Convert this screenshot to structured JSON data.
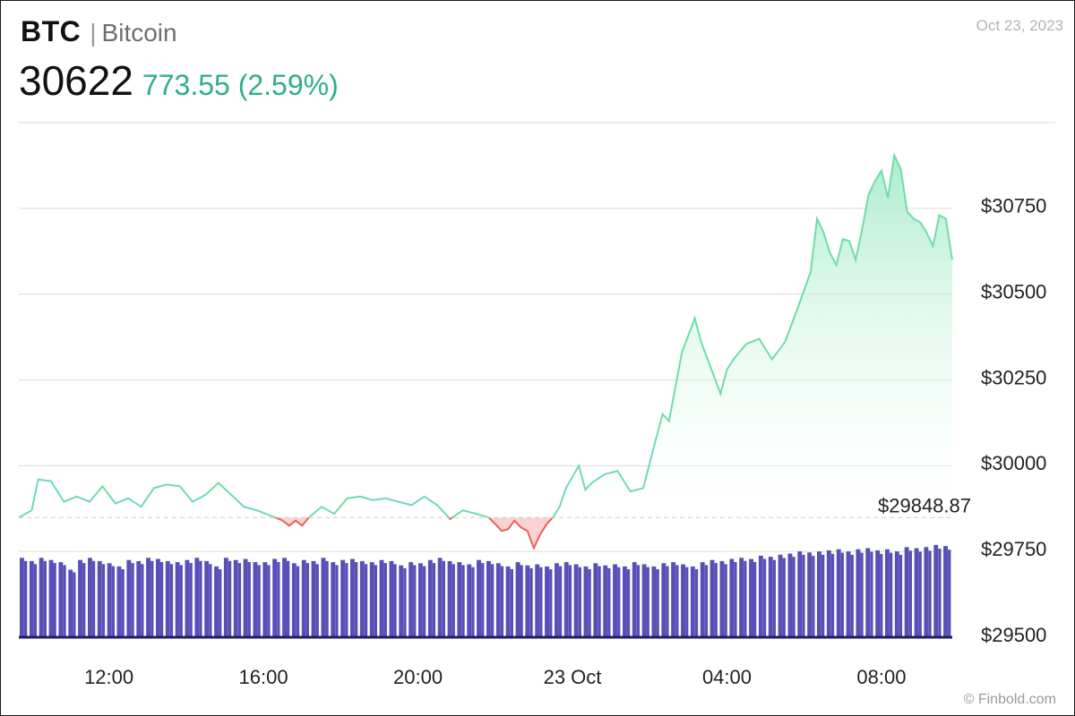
{
  "header": {
    "symbol": "BTC",
    "separator": "|",
    "name": "Bitcoin",
    "price": "30622",
    "change": "773.55 (2.59%)",
    "date": "Oct 23, 2023"
  },
  "footer": {
    "credit": "© Finbold.com"
  },
  "colors": {
    "up_line": "#6fdcab",
    "up_fill_top": "#b8f0d6",
    "down_line": "#e8605c",
    "down_fill": "#f9d3d1",
    "volume": "#5a4fb6",
    "grid": "#dcdcdc",
    "baseline": "#cfcfcf",
    "change_text": "#2eaf86"
  },
  "chart_data": {
    "type": "area",
    "title": "",
    "xlabel": "",
    "ylabel": "",
    "ylim": [
      29500,
      31000
    ],
    "yticks": [
      "$29500",
      "$29750",
      "$30000",
      "$30250",
      "$30500",
      "$30750"
    ],
    "ytick_values": [
      29500,
      29750,
      30000,
      30250,
      30500,
      30750
    ],
    "xticks": [
      {
        "label": "12:00",
        "t": "2023-10-22T12:00"
      },
      {
        "label": "16:00",
        "t": "2023-10-22T16:00"
      },
      {
        "label": "20:00",
        "t": "2023-10-22T20:00"
      },
      {
        "label": "23 Oct",
        "t": "2023-10-23T00:00"
      },
      {
        "label": "04:00",
        "t": "2023-10-23T04:00"
      },
      {
        "label": "08:00",
        "t": "2023-10-23T08:00"
      }
    ],
    "x_range": [
      "2023-10-22T09:40",
      "2023-10-23T09:50"
    ],
    "reference_value": 29848.87,
    "reference_label": "$29848.87",
    "grid": true,
    "series": [
      {
        "values": [
          [
            "2023-10-22T09:40",
            29849
          ],
          [
            "2023-10-22T10:00",
            29870
          ],
          [
            "2023-10-22T10:10",
            29960
          ],
          [
            "2023-10-22T10:30",
            29955
          ],
          [
            "2023-10-22T10:50",
            29895
          ],
          [
            "2023-10-22T11:10",
            29910
          ],
          [
            "2023-10-22T11:30",
            29895
          ],
          [
            "2023-10-22T11:50",
            29940
          ],
          [
            "2023-10-22T12:10",
            29890
          ],
          [
            "2023-10-22T12:30",
            29905
          ],
          [
            "2023-10-22T12:50",
            29880
          ],
          [
            "2023-10-22T13:10",
            29935
          ],
          [
            "2023-10-22T13:30",
            29945
          ],
          [
            "2023-10-22T13:50",
            29940
          ],
          [
            "2023-10-22T14:10",
            29895
          ],
          [
            "2023-10-22T14:30",
            29915
          ],
          [
            "2023-10-22T14:50",
            29950
          ],
          [
            "2023-10-22T15:10",
            29915
          ],
          [
            "2023-10-22T15:30",
            29880
          ],
          [
            "2023-10-22T15:50",
            29870
          ],
          [
            "2023-10-22T16:10",
            29855
          ],
          [
            "2023-10-22T16:20",
            29848
          ],
          [
            "2023-10-22T16:30",
            29840
          ],
          [
            "2023-10-22T16:40",
            29825
          ],
          [
            "2023-10-22T16:50",
            29840
          ],
          [
            "2023-10-22T17:00",
            29825
          ],
          [
            "2023-10-22T17:10",
            29848
          ],
          [
            "2023-10-22T17:30",
            29880
          ],
          [
            "2023-10-22T17:50",
            29860
          ],
          [
            "2023-10-22T18:10",
            29905
          ],
          [
            "2023-10-22T18:30",
            29910
          ],
          [
            "2023-10-22T18:50",
            29900
          ],
          [
            "2023-10-22T19:10",
            29905
          ],
          [
            "2023-10-22T19:30",
            29895
          ],
          [
            "2023-10-22T19:50",
            29885
          ],
          [
            "2023-10-22T20:10",
            29910
          ],
          [
            "2023-10-22T20:30",
            29885
          ],
          [
            "2023-10-22T20:50",
            29845
          ],
          [
            "2023-10-22T21:10",
            29870
          ],
          [
            "2023-10-22T21:30",
            29860
          ],
          [
            "2023-10-22T21:50",
            29849
          ],
          [
            "2023-10-22T22:00",
            29830
          ],
          [
            "2023-10-22T22:10",
            29810
          ],
          [
            "2023-10-22T22:20",
            29815
          ],
          [
            "2023-10-22T22:30",
            29840
          ],
          [
            "2023-10-22T22:40",
            29820
          ],
          [
            "2023-10-22T22:50",
            29810
          ],
          [
            "2023-10-22T23:00",
            29760
          ],
          [
            "2023-10-22T23:10",
            29800
          ],
          [
            "2023-10-22T23:20",
            29830
          ],
          [
            "2023-10-22T23:30",
            29850
          ],
          [
            "2023-10-22T23:40",
            29880
          ],
          [
            "2023-10-22T23:50",
            29935
          ],
          [
            "2023-10-23T00:10",
            30000
          ],
          [
            "2023-10-23T00:20",
            29930
          ],
          [
            "2023-10-23T00:30",
            29950
          ],
          [
            "2023-10-23T00:50",
            29975
          ],
          [
            "2023-10-23T01:10",
            29985
          ],
          [
            "2023-10-23T01:30",
            29925
          ],
          [
            "2023-10-23T01:50",
            29935
          ],
          [
            "2023-10-23T02:10",
            30080
          ],
          [
            "2023-10-23T02:20",
            30150
          ],
          [
            "2023-10-23T02:30",
            30130
          ],
          [
            "2023-10-23T02:50",
            30330
          ],
          [
            "2023-10-23T03:10",
            30430
          ],
          [
            "2023-10-23T03:20",
            30360
          ],
          [
            "2023-10-23T03:30",
            30310
          ],
          [
            "2023-10-23T03:50",
            30210
          ],
          [
            "2023-10-23T04:00",
            30280
          ],
          [
            "2023-10-23T04:10",
            30310
          ],
          [
            "2023-10-23T04:30",
            30355
          ],
          [
            "2023-10-23T04:50",
            30370
          ],
          [
            "2023-10-23T05:10",
            30310
          ],
          [
            "2023-10-23T05:30",
            30360
          ],
          [
            "2023-10-23T05:50",
            30460
          ],
          [
            "2023-10-23T06:10",
            30565
          ],
          [
            "2023-10-23T06:20",
            30720
          ],
          [
            "2023-10-23T06:30",
            30680
          ],
          [
            "2023-10-23T06:40",
            30620
          ],
          [
            "2023-10-23T06:50",
            30585
          ],
          [
            "2023-10-23T07:00",
            30660
          ],
          [
            "2023-10-23T07:10",
            30655
          ],
          [
            "2023-10-23T07:20",
            30600
          ],
          [
            "2023-10-23T07:30",
            30690
          ],
          [
            "2023-10-23T07:40",
            30790
          ],
          [
            "2023-10-23T07:50",
            30830
          ],
          [
            "2023-10-23T08:00",
            30860
          ],
          [
            "2023-10-23T08:10",
            30780
          ],
          [
            "2023-10-23T08:20",
            30905
          ],
          [
            "2023-10-23T08:30",
            30865
          ],
          [
            "2023-10-23T08:40",
            30740
          ],
          [
            "2023-10-23T08:50",
            30720
          ],
          [
            "2023-10-23T09:00",
            30710
          ],
          [
            "2023-10-23T09:10",
            30680
          ],
          [
            "2023-10-23T09:20",
            30640
          ],
          [
            "2023-10-23T09:30",
            30730
          ],
          [
            "2023-10-23T09:40",
            30720
          ],
          [
            "2023-10-23T09:50",
            30600
          ]
        ]
      }
    ],
    "volume": {
      "color": "#5a4fb6",
      "relative_levels": [
        0.74,
        0.71,
        0.74,
        0.72,
        0.7,
        0.63,
        0.72,
        0.74,
        0.71,
        0.69,
        0.66,
        0.72,
        0.71,
        0.74,
        0.73,
        0.71,
        0.7,
        0.72,
        0.74,
        0.71,
        0.66,
        0.74,
        0.72,
        0.73,
        0.7,
        0.7,
        0.73,
        0.74,
        0.69,
        0.72,
        0.71,
        0.74,
        0.7,
        0.72,
        0.73,
        0.71,
        0.7,
        0.72,
        0.71,
        0.67,
        0.7,
        0.69,
        0.72,
        0.74,
        0.71,
        0.7,
        0.68,
        0.72,
        0.71,
        0.69,
        0.66,
        0.7,
        0.67,
        0.68,
        0.66,
        0.69,
        0.7,
        0.68,
        0.66,
        0.69,
        0.67,
        0.68,
        0.66,
        0.7,
        0.68,
        0.66,
        0.69,
        0.7,
        0.68,
        0.66,
        0.7,
        0.72,
        0.71,
        0.73,
        0.74,
        0.73,
        0.76,
        0.75,
        0.77,
        0.78,
        0.8,
        0.79,
        0.8,
        0.81,
        0.82,
        0.8,
        0.82,
        0.83,
        0.81,
        0.82,
        0.8,
        0.84,
        0.83,
        0.84,
        0.86,
        0.85
      ]
    }
  }
}
